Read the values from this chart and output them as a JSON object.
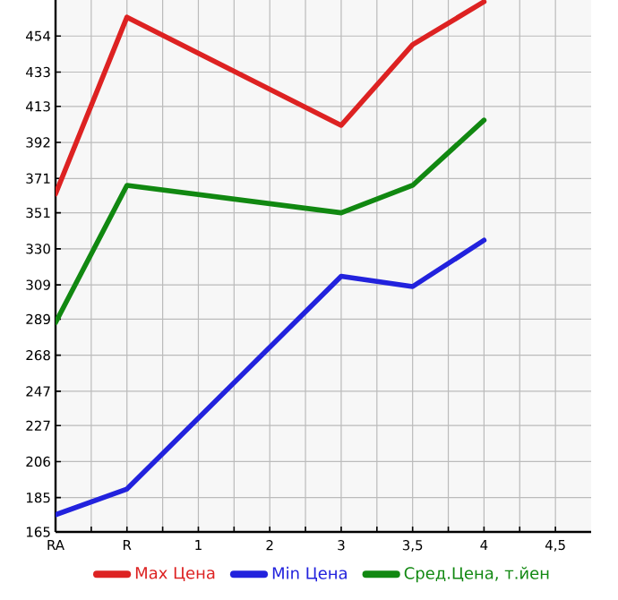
{
  "chart_data": {
    "type": "line",
    "categories": [
      "RA",
      "R",
      "1",
      "2",
      "3",
      "3,5",
      "4",
      "4,5"
    ],
    "series": [
      {
        "name": "Max Цена",
        "color": "#dd2222",
        "values": [
          362,
          465,
          null,
          null,
          402,
          449,
          474,
          null
        ]
      },
      {
        "name": "Min Цена",
        "color": "#2222dd",
        "values": [
          175,
          190,
          null,
          null,
          314,
          308,
          335,
          null
        ]
      },
      {
        "name": "Сред.Цена, т.йен",
        "color": "#118811",
        "values": [
          287,
          367,
          null,
          null,
          351,
          367,
          405,
          null
        ]
      }
    ],
    "ylim": [
      165,
      475
    ],
    "yticks": [
      165,
      185,
      206,
      227,
      247,
      268,
      289,
      309,
      330,
      351,
      371,
      392,
      413,
      433,
      454
    ],
    "grid": true,
    "legend": "bottom",
    "marker": "none",
    "line_style": "solid"
  }
}
